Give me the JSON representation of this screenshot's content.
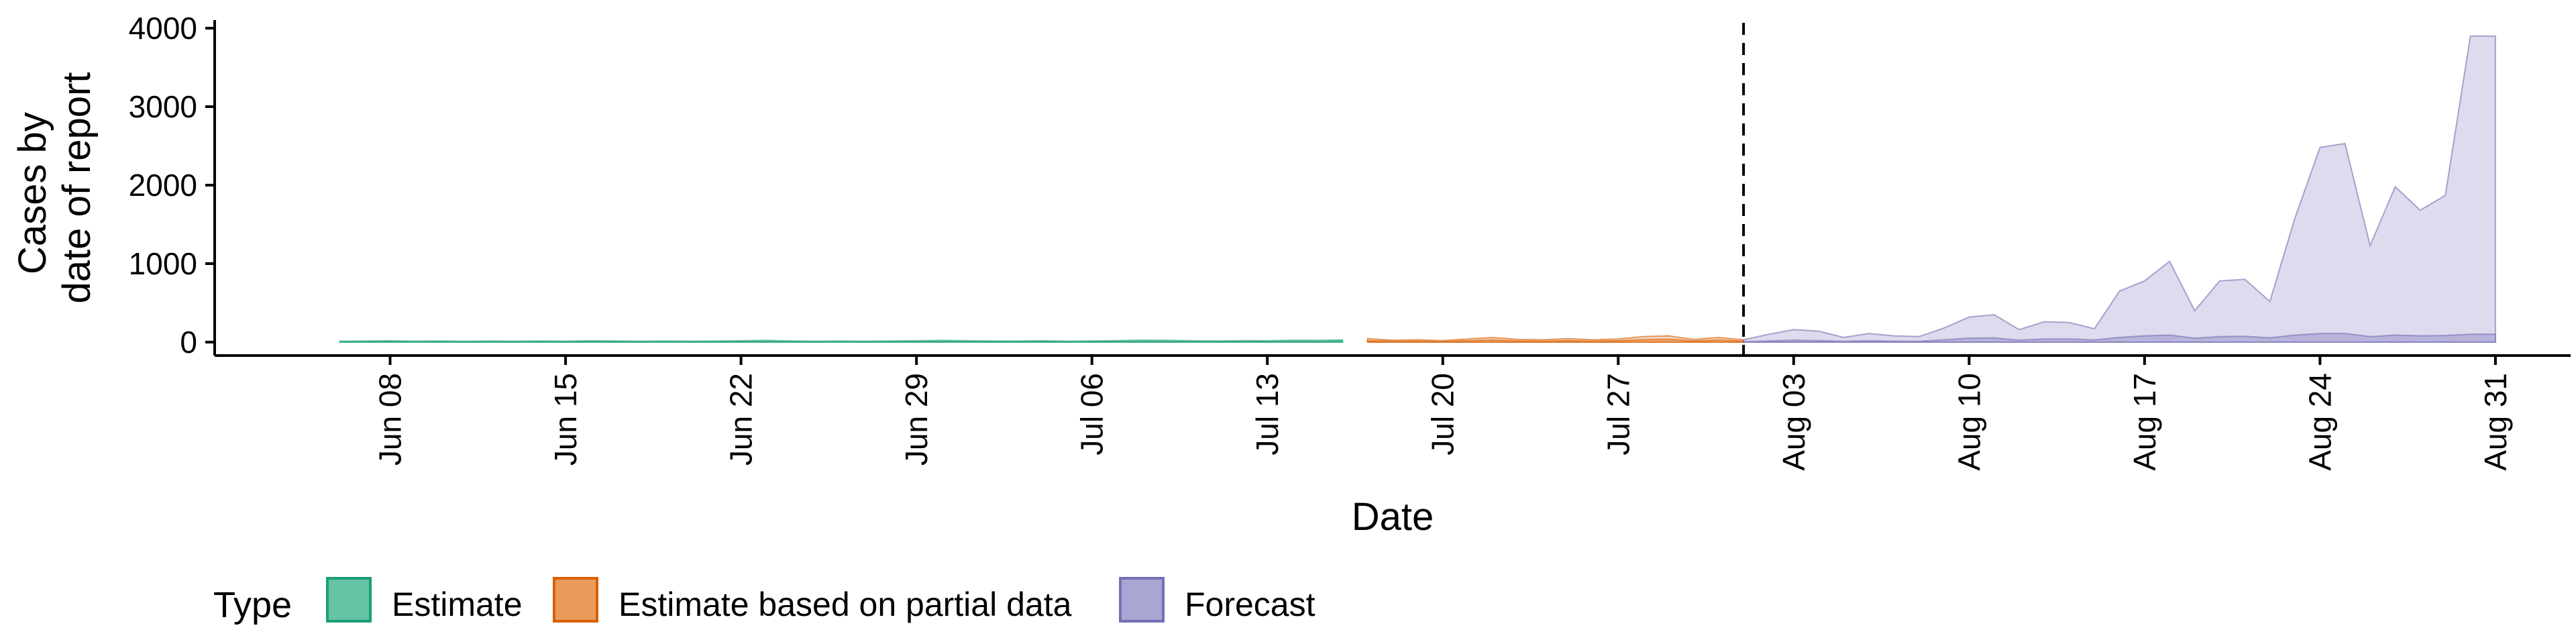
{
  "chart_data": {
    "type": "area",
    "xlabel": "Date",
    "ylabel_lines": [
      "Cases by",
      "date of report"
    ],
    "ylim": [
      0,
      4000
    ],
    "yticks": [
      0,
      1000,
      2000,
      3000,
      4000
    ],
    "xlim": [
      "2020-06-01",
      "2020-09-03"
    ],
    "xticks": [
      {
        "date": "2020-06-08",
        "label": "Jun 08"
      },
      {
        "date": "2020-06-15",
        "label": "Jun 15"
      },
      {
        "date": "2020-06-22",
        "label": "Jun 22"
      },
      {
        "date": "2020-06-29",
        "label": "Jun 29"
      },
      {
        "date": "2020-07-06",
        "label": "Jul 06"
      },
      {
        "date": "2020-07-13",
        "label": "Jul 13"
      },
      {
        "date": "2020-07-20",
        "label": "Jul 20"
      },
      {
        "date": "2020-07-27",
        "label": "Jul 27"
      },
      {
        "date": "2020-08-03",
        "label": "Aug 03"
      },
      {
        "date": "2020-08-10",
        "label": "Aug 10"
      },
      {
        "date": "2020-08-17",
        "label": "Aug 17"
      },
      {
        "date": "2020-08-24",
        "label": "Aug 24"
      },
      {
        "date": "2020-08-31",
        "label": "Aug 31"
      }
    ],
    "vline_date": "2020-08-01",
    "grid": false,
    "legend": {
      "title": "Type",
      "position": "bottom-left",
      "entries": [
        {
          "label": "Estimate",
          "fill": "#66c2a5",
          "stroke": "#1b9e77"
        },
        {
          "label": "Estimate based on partial data",
          "fill": "#e99b5c",
          "stroke": "#d95f02"
        },
        {
          "label": "Forecast",
          "fill": "#a9a6d3",
          "stroke": "#7570b3"
        }
      ]
    },
    "series": [
      {
        "name": "Estimate",
        "fill": "#66c2a5",
        "stroke": "#1b9e77",
        "start": "2020-06-06",
        "outer_lower": [
          0,
          0,
          0,
          0,
          0,
          0,
          0,
          0,
          0,
          0,
          0,
          0,
          0,
          0,
          0,
          0,
          0,
          0,
          0,
          0,
          0,
          0,
          0,
          0,
          0,
          0,
          0,
          0,
          0,
          0,
          0,
          0,
          0,
          0,
          0,
          0,
          0,
          0,
          0,
          0,
          0
        ],
        "outer_upper": [
          12,
          14,
          18,
          12,
          15,
          10,
          14,
          12,
          15,
          12,
          18,
          15,
          12,
          14,
          12,
          14,
          18,
          22,
          15,
          12,
          14,
          12,
          15,
          18,
          22,
          18,
          15,
          14,
          18,
          12,
          15,
          20,
          25,
          22,
          18,
          15,
          20,
          18,
          24,
          22,
          28
        ],
        "inner_lower": [
          0,
          0,
          0,
          0,
          0,
          0,
          0,
          0,
          0,
          0,
          0,
          0,
          0,
          0,
          0,
          0,
          0,
          0,
          0,
          0,
          0,
          0,
          0,
          0,
          0,
          0,
          0,
          0,
          0,
          0,
          0,
          0,
          0,
          0,
          0,
          0,
          0,
          0,
          0,
          0,
          0
        ],
        "inner_upper": [
          5,
          6,
          8,
          5,
          6,
          4,
          6,
          5,
          6,
          5,
          8,
          6,
          5,
          6,
          5,
          6,
          8,
          10,
          6,
          5,
          6,
          5,
          6,
          8,
          10,
          8,
          6,
          6,
          8,
          5,
          6,
          9,
          12,
          10,
          8,
          6,
          9,
          8,
          11,
          10,
          13
        ]
      },
      {
        "name": "Estimate based on partial data",
        "fill": "#e99b5c",
        "stroke": "#d95f02",
        "start": "2020-07-17",
        "outer_lower": [
          0,
          0,
          0,
          0,
          0,
          0,
          0,
          0,
          0,
          0,
          0,
          0,
          0,
          0,
          0,
          0
        ],
        "outer_upper": [
          45,
          25,
          30,
          20,
          40,
          60,
          35,
          30,
          45,
          30,
          40,
          70,
          80,
          35,
          60,
          30
        ],
        "inner_lower": [
          0,
          0,
          0,
          0,
          0,
          0,
          0,
          0,
          0,
          0,
          0,
          0,
          0,
          0,
          0,
          0
        ],
        "inner_upper": [
          20,
          10,
          12,
          8,
          18,
          28,
          15,
          12,
          20,
          12,
          18,
          32,
          38,
          15,
          28,
          12
        ]
      },
      {
        "name": "Forecast",
        "fill": "#a9a6d3",
        "stroke": "#7570b3",
        "start": "2020-08-01",
        "outer_lower": [
          0,
          0,
          0,
          0,
          0,
          0,
          0,
          0,
          0,
          0,
          0,
          0,
          0,
          0,
          0,
          0,
          0,
          0,
          0,
          0,
          0,
          0,
          0,
          0,
          0,
          0,
          0,
          0,
          0,
          0,
          0
        ],
        "outer_upper": [
          30,
          100,
          160,
          140,
          60,
          110,
          80,
          70,
          180,
          320,
          350,
          160,
          260,
          250,
          170,
          650,
          780,
          1030,
          400,
          780,
          800,
          520,
          1580,
          2480,
          2530,
          1230,
          1980,
          1680,
          1870,
          3900,
          3900
        ],
        "inner_lower": [
          0,
          0,
          0,
          0,
          0,
          0,
          0,
          0,
          0,
          0,
          0,
          0,
          0,
          0,
          0,
          0,
          0,
          0,
          0,
          0,
          0,
          0,
          0,
          0,
          0,
          0,
          0,
          0,
          0,
          0,
          0
        ],
        "inner_upper": [
          5,
          15,
          25,
          20,
          10,
          18,
          12,
          10,
          30,
          50,
          55,
          25,
          40,
          40,
          28,
          60,
          80,
          90,
          50,
          70,
          75,
          55,
          90,
          110,
          110,
          70,
          90,
          80,
          85,
          100,
          100
        ]
      }
    ]
  }
}
